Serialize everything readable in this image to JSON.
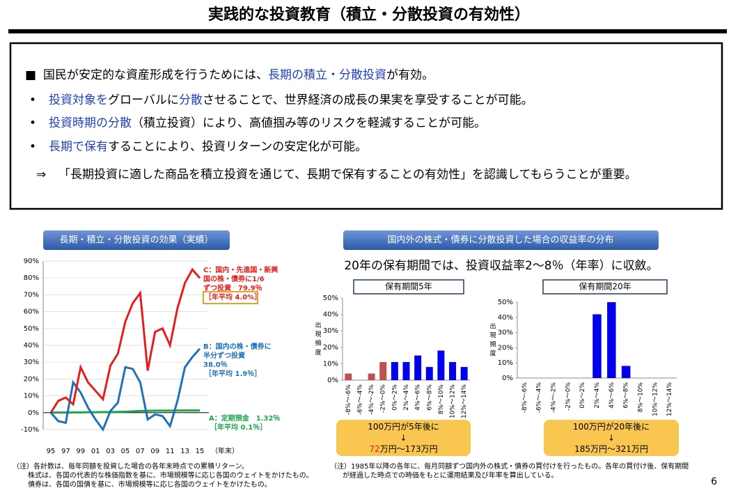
{
  "header": {
    "title": "実践的な投資教育（積立・分散投資の有効性）"
  },
  "box": {
    "lines": [
      {
        "bullet": "■",
        "segments": [
          {
            "text": "国民が安定的な資産形成を行うためには、",
            "color": "#000000"
          },
          {
            "text": "長期の積立・分散投資",
            "color": "#1f3fbf"
          },
          {
            "text": "が有効。",
            "color": "#000000"
          }
        ]
      },
      {
        "bullet": "•",
        "segments": [
          {
            "text": "投資対象を",
            "color": "#1f3fbf"
          },
          {
            "text": "グローバルに",
            "color": "#000000"
          },
          {
            "text": "分散",
            "color": "#1f3fbf"
          },
          {
            "text": "させることで、世界経済の成長の果実を享受することが可能。",
            "color": "#000000"
          }
        ]
      },
      {
        "bullet": "•",
        "segments": [
          {
            "text": "投資時期の分散",
            "color": "#1f3fbf"
          },
          {
            "text": "（積立投資）により、高値掴み等のリスクを軽減することが可能。",
            "color": "#000000"
          }
        ]
      },
      {
        "bullet": "•",
        "segments": [
          {
            "text": "長期で保有",
            "color": "#1f3fbf"
          },
          {
            "text": "することにより、投資リターンの安定化が可能。",
            "color": "#000000"
          }
        ]
      },
      {
        "bullet": "⇒",
        "segments": [
          {
            "text": "「長期投資に適した商品を積立投資を通じて、長期で保有することの有効性」を認識してもらうことが重要。",
            "color": "#000000"
          }
        ]
      }
    ]
  },
  "sections": [
    "長期・積立・分散投資の効果（実績）",
    "国内外の株式・債券に分散投資した場合の収益率の分布"
  ],
  "subheading": "20年の保有期間では、投資収益率2～8％（年率）に収斂。",
  "chart_data": [
    {
      "type": "line",
      "categories": [
        "95",
        null,
        "97",
        null,
        "99",
        null,
        "01",
        null,
        "03",
        null,
        "05",
        null,
        "07",
        null,
        "09",
        null,
        "11",
        null,
        "13",
        null,
        "15"
      ],
      "x_unit": "（年末）",
      "ylim": [
        -10,
        90
      ],
      "yticks": [
        {
          "value": -10,
          "label": "-10%"
        },
        {
          "value": 0,
          "label": "0%"
        },
        {
          "value": 10,
          "label": "10%"
        },
        {
          "value": 20,
          "label": "20%"
        },
        {
          "value": 30,
          "label": "30%"
        },
        {
          "value": 40,
          "label": "40%"
        },
        {
          "value": 50,
          "label": "50%"
        },
        {
          "value": 60,
          "label": "60%"
        },
        {
          "value": 70,
          "label": "70%"
        },
        {
          "value": 80,
          "label": "80%"
        },
        {
          "value": 90,
          "label": "90%"
        }
      ],
      "series": [
        {
          "label_lines": [
            "C：国内・先進国・新興",
            "国の株・債券に1/6",
            "ずつ投資　79.9％"
          ],
          "average": "［年平均 4.0%］",
          "color": "#e41e1e",
          "values": [
            0,
            7,
            9,
            5,
            27,
            18,
            13,
            8,
            28,
            35,
            54,
            65,
            71,
            25,
            48,
            50,
            40,
            62,
            77,
            85,
            79.9
          ]
        },
        {
          "label_lines": [
            "B：国内の株・債券に",
            "半分ずつ投資",
            "38.0％"
          ],
          "average": "［年平均 1.9％］",
          "color": "#1f72b8",
          "values": [
            0,
            -5,
            -6,
            18,
            12,
            3,
            -4,
            -10,
            1,
            6,
            27,
            26,
            18,
            -4,
            -1,
            -2,
            -8,
            7,
            27,
            33,
            38
          ]
        },
        {
          "label_lines": [
            "A：定期預金　1.32％"
          ],
          "average": "［年平均 0.1％］",
          "color": "#1aa64a",
          "values": [
            0,
            0.1,
            0.1,
            0.2,
            0.2,
            0.3,
            0.3,
            0.4,
            0.4,
            0.5,
            0.6,
            0.8,
            1,
            1.1,
            1.2,
            1.2,
            1.2,
            1.3,
            1.3,
            1.3,
            1.32
          ]
        }
      ]
    },
    {
      "type": "bar",
      "subtitle": "保有期間5年",
      "ylabel": "出現頻度",
      "categories": [
        "-8%～-6%",
        "-6%～-4%",
        "-4%～-2%",
        "-2%～0%",
        "0%～2%",
        "2%～4%",
        "4%～6%",
        "6%～8%",
        "8%～10%",
        "10%～12%",
        "12%～14%"
      ],
      "values": [
        4,
        0,
        4,
        11,
        11,
        11,
        15,
        8,
        18,
        11,
        8
      ],
      "colors": [
        "#c0504d",
        "#c0504d",
        "#c0504d",
        "#c0504d",
        "#0000ee",
        "#0000ee",
        "#0000ee",
        "#0000ee",
        "#0000ee",
        "#0000ee",
        "#0000ee"
      ],
      "ylim": [
        0,
        50
      ],
      "yticks": [
        {
          "value": 0,
          "label": "0%"
        },
        {
          "value": 10,
          "label": "10%"
        },
        {
          "value": 20,
          "label": "20%"
        },
        {
          "value": 30,
          "label": "30%"
        },
        {
          "value": 40,
          "label": "40%"
        },
        {
          "value": 50,
          "label": "50%"
        }
      ],
      "callout": [
        [
          {
            "text": "100万円が5年後に",
            "color": "#000000"
          }
        ],
        [
          {
            "text": "↓",
            "color": "#000000"
          }
        ],
        [
          {
            "text": "72",
            "color": "#e41e1e"
          },
          {
            "text": "万円～173万円",
            "color": "#000000"
          }
        ]
      ]
    },
    {
      "type": "bar",
      "subtitle": "保有期間20年",
      "ylabel": "出現頻度",
      "categories": [
        "-8%～-6%",
        "-6%～-4%",
        "-4%～-2%",
        "-2%～0%",
        "0%～2%",
        "2%～4%",
        "4%～6%",
        "6%～8%",
        "8%～10%",
        "10%～12%",
        "12%～14%"
      ],
      "values": [
        0,
        0,
        0,
        0,
        0,
        42,
        50,
        8,
        0,
        0,
        0
      ],
      "colors": [
        "#0000ee",
        "#0000ee",
        "#0000ee",
        "#0000ee",
        "#0000ee",
        "#0000ee",
        "#0000ee",
        "#0000ee",
        "#0000ee",
        "#0000ee",
        "#0000ee"
      ],
      "ylim": [
        0,
        50
      ],
      "yticks": [
        {
          "value": 0,
          "label": "0%"
        },
        {
          "value": 10,
          "label": "10%"
        },
        {
          "value": 20,
          "label": "20%"
        },
        {
          "value": 30,
          "label": "30%"
        },
        {
          "value": 40,
          "label": "40%"
        },
        {
          "value": 50,
          "label": "50%"
        }
      ],
      "callout": [
        [
          {
            "text": "100万円が20年後に",
            "color": "#000000"
          }
        ],
        [
          {
            "text": "↓",
            "color": "#000000"
          }
        ],
        [
          {
            "text": "185万円～321万円",
            "color": "#000000"
          }
        ]
      ]
    }
  ],
  "notes": {
    "left": [
      "（注）各計数は、毎年同額を投資した場合の各年末時点での累積リターン。",
      "株式は、各国の代表的な株価指数を基に、市場規模等に応じ各国のウェイトをかけたもの。",
      "債券は、各国の国債を基に、市場規模等に応じ各国のウェイトをかけたもの。"
    ],
    "right": [
      "（注）1985年以降の各年に、毎月同額ずつ国内外の株式・債券の買付けを行ったもの。各年の買付け後、保有期間",
      "が経過した時点での時価をもとに運用結果及び年率を算出している。"
    ]
  },
  "page_number": "6"
}
